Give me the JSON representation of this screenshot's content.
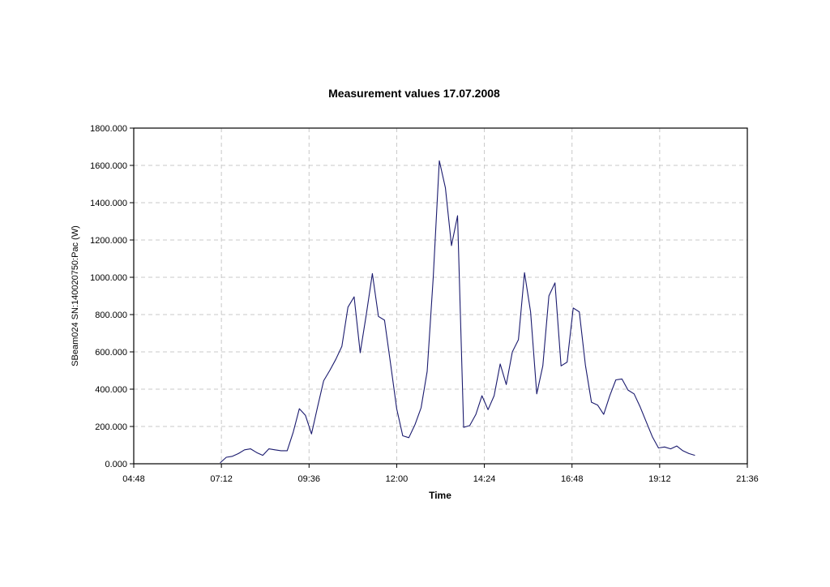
{
  "chart_data": {
    "type": "line",
    "title": "Measurement values 17.07.2008",
    "xlabel": "Time",
    "ylabel": "SBeam024 SN:140020750:Pac (W)",
    "xlim": [
      "04:48",
      "21:36"
    ],
    "ylim": [
      0,
      1800
    ],
    "x_ticks": [
      "04:48",
      "07:12",
      "09:36",
      "12:00",
      "14:24",
      "16:48",
      "19:12",
      "21:36"
    ],
    "y_ticks": [
      "0.000",
      "200.000",
      "400.000",
      "600.000",
      "800.000",
      "1000.000",
      "1200.000",
      "1400.000",
      "1600.000",
      "1800.000"
    ],
    "grid": true,
    "legend": "none",
    "line_color": "#1a1a6e",
    "series": [
      {
        "x": [
          "07:10",
          "07:20",
          "07:30",
          "07:40",
          "07:50",
          "08:00",
          "08:10",
          "08:20",
          "08:30",
          "08:40",
          "08:50",
          "09:00",
          "09:10",
          "09:20",
          "09:30",
          "09:40",
          "09:50",
          "10:00",
          "10:10",
          "10:20",
          "10:30",
          "10:40",
          "10:50",
          "11:00",
          "11:10",
          "11:20",
          "11:30",
          "11:40",
          "11:50",
          "12:00",
          "12:10",
          "12:20",
          "12:30",
          "12:40",
          "12:50",
          "13:00",
          "13:10",
          "13:20",
          "13:30",
          "13:40",
          "13:50",
          "14:00",
          "14:10",
          "14:20",
          "14:30",
          "14:40",
          "14:50",
          "15:00",
          "15:10",
          "15:20",
          "15:30",
          "15:40",
          "15:50",
          "16:00",
          "16:10",
          "16:20",
          "16:30",
          "16:40",
          "16:50",
          "17:00",
          "17:10",
          "17:20",
          "17:30",
          "17:40",
          "17:50",
          "18:00",
          "18:10",
          "18:20",
          "18:30",
          "18:40",
          "18:50",
          "19:00",
          "19:10",
          "19:20",
          "19:30",
          "19:40",
          "19:50",
          "20:00",
          "20:10"
        ],
        "y": [
          5,
          35,
          40,
          55,
          75,
          80,
          60,
          45,
          80,
          75,
          70,
          70,
          170,
          295,
          260,
          160,
          305,
          445,
          500,
          560,
          630,
          840,
          895,
          595,
          800,
          1020,
          790,
          770,
          535,
          295,
          150,
          140,
          210,
          300,
          495,
          1000,
          1625,
          1480,
          1170,
          1330,
          195,
          205,
          265,
          365,
          290,
          365,
          535,
          425,
          600,
          665,
          1025,
          815,
          375,
          525,
          900,
          970,
          525,
          545,
          835,
          815,
          530,
          330,
          315,
          265,
          365,
          450,
          455,
          395,
          375,
          305,
          225,
          145,
          85,
          90,
          80,
          95,
          70,
          55,
          45
        ]
      }
    ]
  }
}
